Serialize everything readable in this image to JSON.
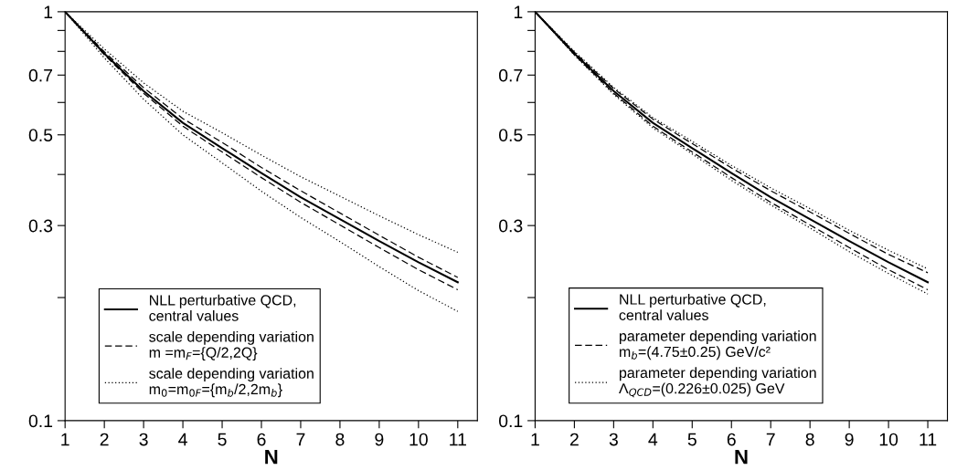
{
  "chart_data": [
    {
      "type": "line",
      "xlabel": "N",
      "x": [
        1,
        2,
        3,
        4,
        5,
        6,
        7,
        8,
        9,
        10,
        11
      ],
      "log": "y",
      "xlim": [
        1,
        11.5
      ],
      "ylim": [
        0.1,
        1
      ],
      "xticks": [
        1,
        2,
        3,
        4,
        5,
        6,
        7,
        8,
        9,
        10,
        11
      ],
      "yticks": [
        0.1,
        {
          "value": 0.2,
          "label": null
        },
        0.3,
        {
          "value": 0.4,
          "label": null
        },
        0.5,
        {
          "value": 0.6,
          "label": null
        },
        0.7,
        {
          "value": 0.8,
          "label": null
        },
        {
          "value": 0.9,
          "label": null
        },
        1
      ],
      "legend": "bottom left",
      "grid": false,
      "marker": "none",
      "series": [
        {
          "name": "NLL perturbative QCD,\ncentral values",
          "color": "#000000",
          "line_style": "solid",
          "values": [
            1,
            0.79,
            0.64,
            0.535,
            0.464,
            0.403,
            0.352,
            0.311,
            0.275,
            0.244,
            0.218
          ]
        },
        {
          "name": "scale depending variation\nm =m$_{F}$={Q/2,2Q}",
          "color": "#000000",
          "line_style": "dashed",
          "values": [
            1,
            0.798,
            0.652,
            0.548,
            0.479,
            0.416,
            0.365,
            0.322,
            0.284,
            0.251,
            0.224
          ]
        },
        {
          "color": "#000000",
          "line_style": "dashed",
          "values": [
            1,
            0.785,
            0.632,
            0.525,
            0.454,
            0.393,
            0.342,
            0.301,
            0.265,
            0.234,
            0.209
          ]
        },
        {
          "name": "scale depending variation\nm$_{0}$=m$_{0F}$={m$_{b}$/2,2m$_{b}$}",
          "color": "#000000",
          "line_style": "dotted",
          "values": [
            1,
            0.811,
            0.67,
            0.571,
            0.506,
            0.446,
            0.395,
            0.354,
            0.317,
            0.285,
            0.258
          ]
        },
        {
          "color": "#000000",
          "line_style": "dotted",
          "values": [
            1,
            0.771,
            0.611,
            0.5,
            0.427,
            0.364,
            0.314,
            0.274,
            0.238,
            0.208,
            0.185
          ]
        }
      ]
    },
    {
      "type": "line",
      "xlabel": "N",
      "x": [
        1,
        2,
        3,
        4,
        5,
        6,
        7,
        8,
        9,
        10,
        11
      ],
      "log": "y",
      "xlim": [
        1,
        11.5
      ],
      "ylim": [
        0.1,
        1
      ],
      "xticks": [
        1,
        2,
        3,
        4,
        5,
        6,
        7,
        8,
        9,
        10,
        11
      ],
      "yticks": [
        0.1,
        {
          "value": 0.2,
          "label": null
        },
        0.3,
        {
          "value": 0.4,
          "label": null
        },
        0.5,
        {
          "value": 0.6,
          "label": null
        },
        0.7,
        {
          "value": 0.8,
          "label": null
        },
        {
          "value": 0.9,
          "label": null
        },
        1
      ],
      "legend": "bottom left",
      "grid": false,
      "marker": "none",
      "series": [
        {
          "name": "NLL perturbative QCD,\ncentral values",
          "color": "#000000",
          "line_style": "solid",
          "values": [
            1,
            0.79,
            0.64,
            0.535,
            0.464,
            0.403,
            0.352,
            0.311,
            0.275,
            0.244,
            0.218
          ]
        },
        {
          "name": "parameter depending variation\nm$_{b}$=(4.75±0.25) GeV/c²",
          "color": "#000000",
          "line_style": "dashed",
          "values": [
            1,
            0.796,
            0.649,
            0.546,
            0.476,
            0.415,
            0.365,
            0.324,
            0.287,
            0.255,
            0.23
          ]
        },
        {
          "color": "#000000",
          "line_style": "dashed",
          "values": [
            1,
            0.785,
            0.632,
            0.525,
            0.454,
            0.393,
            0.342,
            0.301,
            0.265,
            0.234,
            0.209
          ]
        },
        {
          "name": "parameter depending variation\nΛ$_{QCD}$=(0.226±0.025) GeV",
          "color": "#000000",
          "line_style": "dotted",
          "values": [
            1,
            0.8,
            0.653,
            0.551,
            0.482,
            0.421,
            0.371,
            0.33,
            0.292,
            0.261,
            0.235
          ]
        },
        {
          "color": "#000000",
          "line_style": "dotted",
          "values": [
            1,
            0.783,
            0.628,
            0.52,
            0.449,
            0.387,
            0.337,
            0.296,
            0.259,
            0.229,
            0.204
          ]
        }
      ]
    }
  ]
}
